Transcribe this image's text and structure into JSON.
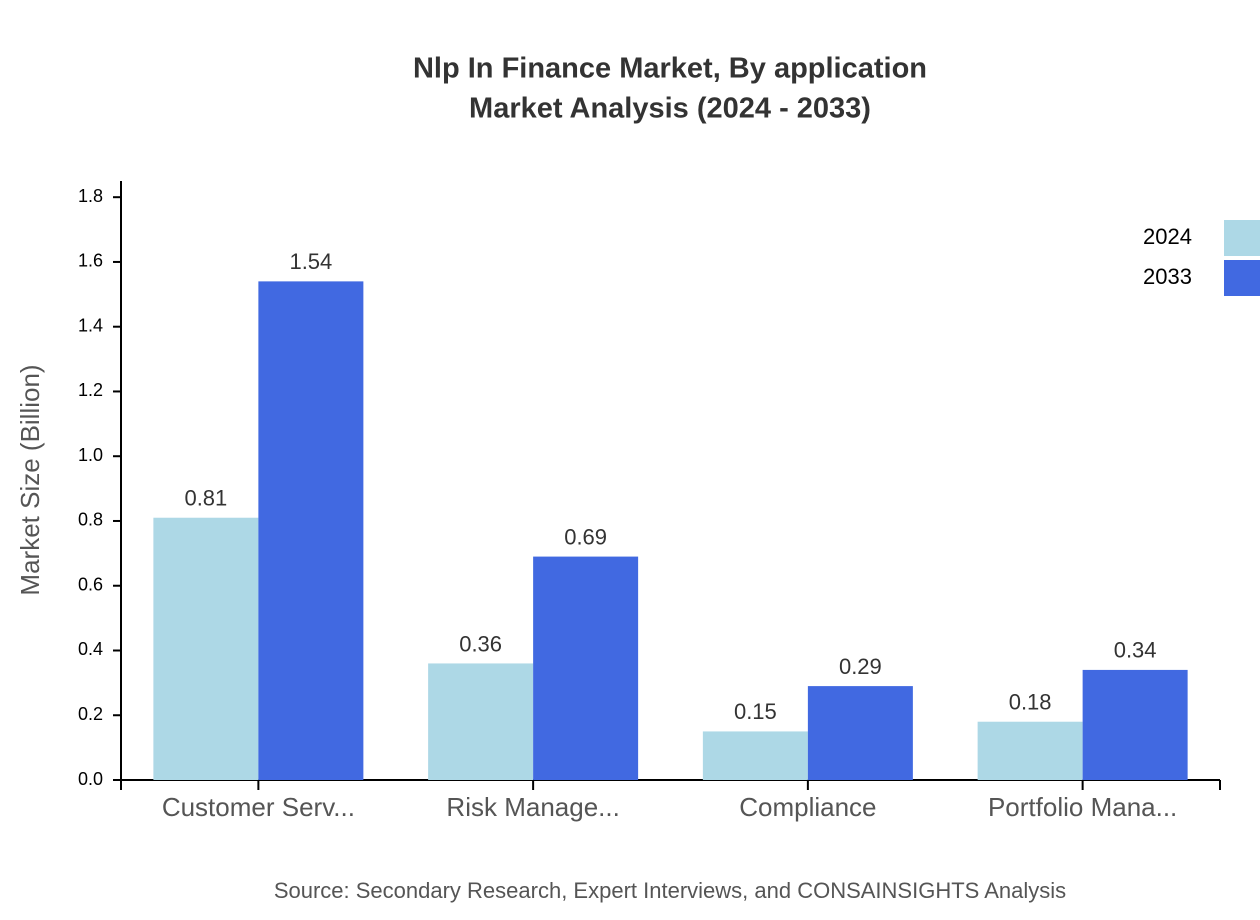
{
  "chart_data": {
    "type": "bar",
    "title": "Nlp In Finance Market, By application",
    "subtitle": "Market Analysis (2024 - 2033)",
    "y_label": "Market Size (Billion)",
    "source": "Source: Secondary Research, Expert Interviews, and CONSAINSIGHTS Analysis",
    "categories": [
      "Customer Serv...",
      "Risk Manage...",
      "Compliance",
      "Portfolio Mana..."
    ],
    "series": [
      {
        "name": "2024",
        "color": "#add8e6",
        "values": [
          0.81,
          0.36,
          0.15,
          0.18
        ]
      },
      {
        "name": "2033",
        "color": "#4169e1",
        "values": [
          1.54,
          0.69,
          0.29,
          0.34
        ]
      }
    ],
    "ylim": [
      0,
      1.85
    ],
    "yticks": [
      {
        "value": 0,
        "label": "0.0"
      },
      0.2,
      0.4,
      0.6,
      0.8,
      {
        "value": 1,
        "label": "1.0"
      },
      1.2,
      1.4,
      1.6,
      1.8
    ],
    "legend": "top-right"
  }
}
